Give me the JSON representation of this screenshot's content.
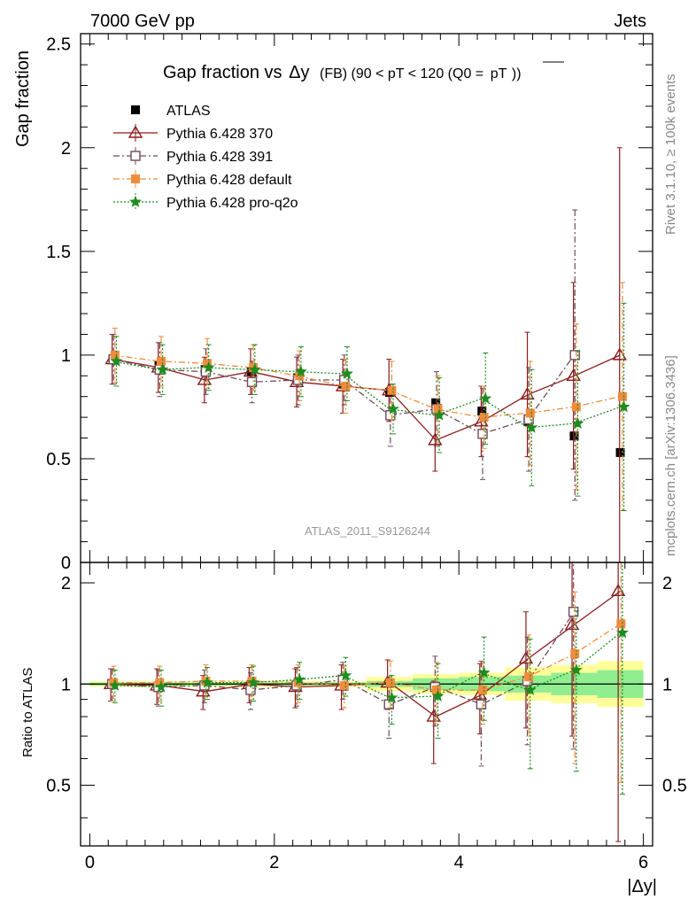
{
  "header": {
    "left": "7000 GeV pp",
    "right": "Jets",
    "side_top": "Rivet 3.1.10, ≥ 100k events",
    "side_bottom": "mcplots.cern.ch [arXiv:1306.3436]"
  },
  "chart_data": [
    {
      "type": "scatter",
      "title_main": "Gap fraction vs",
      "title_delta": "Δy",
      "title_rest": "(FB)  (90 < pT < 120 (Q0 =",
      "title_over": "pT",
      "title_end": "))",
      "watermark": "ATLAS_2011_S9126244",
      "ylabel": "Gap fraction",
      "xlabel": "|Δy|",
      "xlim": [
        -0.1,
        6.1
      ],
      "ylim": [
        0,
        2.55
      ],
      "yticks": [
        "0",
        "0.5",
        "1",
        "1.5",
        "2",
        "2.5"
      ],
      "x": [
        0.25,
        0.75,
        1.25,
        1.75,
        2.25,
        2.75,
        3.25,
        3.75,
        4.25,
        4.75,
        5.25,
        5.75
      ],
      "series": [
        {
          "name": "ATLAS",
          "color": "#000000",
          "marker": "square-filled",
          "values": [
            0.98,
            0.95,
            0.93,
            0.92,
            0.89,
            0.86,
            0.82,
            0.77,
            0.73,
            0.68,
            0.61,
            0.53
          ]
        },
        {
          "name": "Pythia 6.428 370",
          "color": "#8b1a1a",
          "marker": "triangle-open",
          "line": "solid",
          "values": [
            0.98,
            0.94,
            0.88,
            0.92,
            0.87,
            0.85,
            0.83,
            0.59,
            0.68,
            0.81,
            0.9,
            1.0
          ],
          "err": [
            0.12,
            0.12,
            0.11,
            0.11,
            0.12,
            0.13,
            0.15,
            0.15,
            0.17,
            0.3,
            0.45,
            1.0
          ]
        },
        {
          "name": "Pythia 6.428 391",
          "color": "#6e4a5a",
          "marker": "square-open",
          "line": "dashdot",
          "values": [
            0.98,
            0.93,
            0.92,
            0.87,
            0.88,
            0.88,
            0.71,
            0.74,
            0.62,
            0.69,
            1.0,
            null
          ],
          "err": [
            0.12,
            0.13,
            0.11,
            0.1,
            0.12,
            0.12,
            0.15,
            0.18,
            0.22,
            0.25,
            0.7,
            0
          ]
        },
        {
          "name": "Pythia 6.428 default",
          "color": "#f08c3c",
          "marker": "square-filled",
          "line": "dashdot",
          "values": [
            1.0,
            0.97,
            0.96,
            0.94,
            0.9,
            0.85,
            0.83,
            0.74,
            0.7,
            0.72,
            0.75,
            0.8
          ],
          "err": [
            0.13,
            0.12,
            0.12,
            0.11,
            0.12,
            0.13,
            0.14,
            0.16,
            0.15,
            0.25,
            0.4,
            0.55
          ]
        },
        {
          "name": "Pythia 6.428 pro-q2o",
          "color": "#1e8c1e",
          "marker": "star",
          "line": "dotted",
          "values": [
            0.97,
            0.93,
            0.94,
            0.93,
            0.92,
            0.91,
            0.74,
            0.71,
            0.79,
            0.65,
            0.67,
            0.75
          ],
          "err": [
            0.12,
            0.12,
            0.11,
            0.12,
            0.12,
            0.13,
            0.12,
            0.18,
            0.22,
            0.28,
            0.35,
            0.5
          ]
        }
      ]
    },
    {
      "type": "scatter",
      "ylabel": "Ratio to ATLAS",
      "xlabel": "|Δy|",
      "xlim": [
        -0.1,
        6.1
      ],
      "ylim": [
        0.33,
        2.3
      ],
      "yscale": "log",
      "yticks": [
        "0.5",
        "1",
        "2"
      ],
      "xticks": [
        "0",
        "2",
        "4",
        "6"
      ],
      "x": [
        0.25,
        0.75,
        1.25,
        1.75,
        2.25,
        2.75,
        3.25,
        3.75,
        4.25,
        4.75,
        5.25,
        5.75
      ],
      "reference_band_inner": [
        1.01,
        1.01,
        1.01,
        1.01,
        1.01,
        1.01,
        1.02,
        1.04,
        1.05,
        1.06,
        1.08,
        1.1
      ],
      "reference_band_outer": [
        1.02,
        1.02,
        1.02,
        1.02,
        1.02,
        1.02,
        1.05,
        1.07,
        1.08,
        1.12,
        1.14,
        1.17
      ],
      "band_colors": {
        "inner": "#90ee90",
        "outer": "#ffff99"
      },
      "series": [
        {
          "name": "Pythia 6.428 370",
          "color": "#8b1a1a",
          "marker": "triangle-open",
          "line": "solid",
          "values": [
            1.0,
            0.99,
            0.95,
            1.0,
            0.98,
            0.99,
            1.01,
            0.8,
            0.93,
            1.19,
            1.5,
            1.89
          ],
          "err": [
            0.11,
            0.12,
            0.11,
            0.12,
            0.13,
            0.15,
            0.17,
            0.22,
            0.22,
            0.45,
            0.8,
            1.8
          ]
        },
        {
          "name": "Pythia 6.428 391",
          "color": "#6e4a5a",
          "marker": "square-open",
          "line": "dashdot",
          "values": [
            1.0,
            0.98,
            0.99,
            0.96,
            0.99,
            1.03,
            0.87,
            0.98,
            0.87,
            1.02,
            1.64,
            null
          ],
          "err": [
            0.11,
            0.12,
            0.11,
            0.12,
            0.13,
            0.13,
            0.18,
            0.23,
            0.3,
            0.36,
            1.0,
            0
          ]
        },
        {
          "name": "Pythia 6.428 default",
          "color": "#f08c3c",
          "marker": "square-filled",
          "line": "dashdot",
          "values": [
            1.01,
            1.01,
            1.02,
            1.02,
            1.01,
            0.99,
            1.01,
            0.96,
            0.96,
            1.05,
            1.23,
            1.51
          ],
          "err": [
            0.12,
            0.12,
            0.12,
            0.12,
            0.13,
            0.14,
            0.16,
            0.2,
            0.2,
            0.35,
            0.65,
            1.0
          ]
        },
        {
          "name": "Pythia 6.428 pro-q2o",
          "color": "#1e8c1e",
          "marker": "star",
          "line": "dotted",
          "values": [
            0.99,
            0.98,
            1.01,
            1.01,
            1.03,
            1.06,
            0.91,
            0.92,
            1.08,
            0.96,
            1.1,
            1.42
          ],
          "err": [
            0.11,
            0.12,
            0.11,
            0.12,
            0.13,
            0.14,
            0.15,
            0.23,
            0.3,
            0.4,
            0.55,
            0.95
          ]
        }
      ]
    }
  ]
}
